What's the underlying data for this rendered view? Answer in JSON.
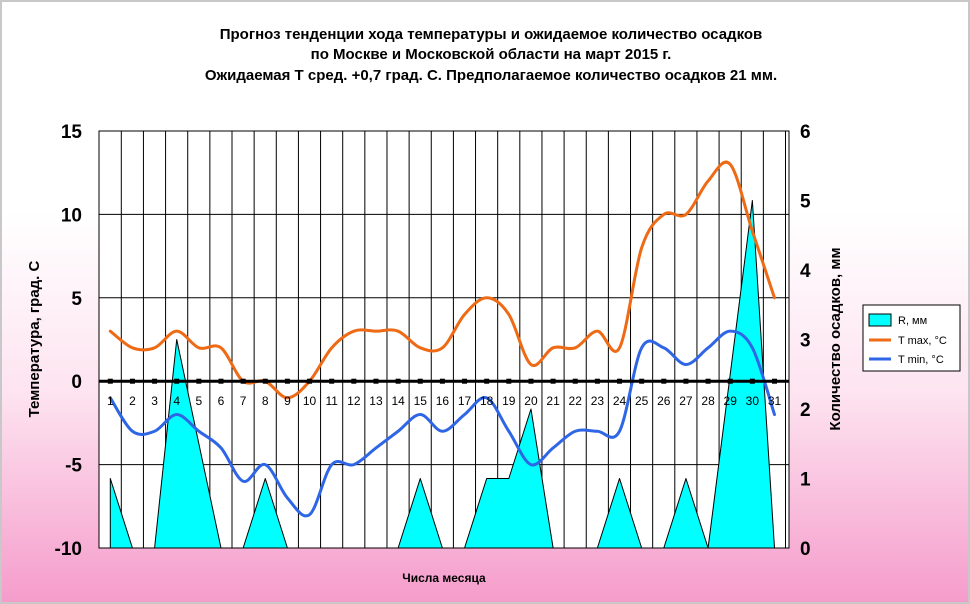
{
  "chart_data": {
    "type": "line",
    "title": [
      "Прогноз тенденции хода температуры и ожидаемое количество осадков",
      "по Москве и Московской области на март 2015 г.",
      "Ожидаемая Т сред. +0,7 град. С. Предполагаемое количество осадков 21 мм."
    ],
    "xlabel": "Числа месяца",
    "ylabel": "Температура, град. С",
    "y2label": "Количество осадков, мм",
    "ylim": [
      -10,
      15
    ],
    "y2lim": [
      0,
      6
    ],
    "yticks": [
      -10,
      -5,
      0,
      5,
      10,
      15
    ],
    "y2ticks": [
      0,
      1,
      2,
      3,
      4,
      5,
      6
    ],
    "categories": [
      "1",
      "2",
      "3",
      "4",
      "5",
      "6",
      "7",
      "8",
      "9",
      "10",
      "11",
      "12",
      "13",
      "14",
      "15",
      "16",
      "17",
      "18",
      "19",
      "20",
      "21",
      "22",
      "23",
      "24",
      "25",
      "26",
      "27",
      "28",
      "29",
      "30",
      "31"
    ],
    "series": [
      {
        "name": "R, мм",
        "type": "area",
        "axis": "right",
        "color": "#00ffff",
        "values": [
          1,
          0,
          0,
          3,
          1.5,
          0,
          0,
          1,
          0,
          0,
          0,
          0,
          0,
          0,
          1,
          0,
          0,
          1,
          1,
          2,
          0,
          0,
          0,
          1,
          0,
          0,
          1,
          0,
          2.5,
          5,
          0
        ]
      },
      {
        "name": "T max, °C",
        "type": "line",
        "axis": "left",
        "color": "#ee6a14",
        "values": [
          3,
          2,
          2,
          3,
          2,
          2,
          0,
          0,
          -1,
          0,
          2,
          3,
          3,
          3,
          2,
          2,
          4,
          5,
          4,
          1,
          2,
          2,
          3,
          2,
          8,
          10,
          10,
          12,
          13,
          9,
          5
        ]
      },
      {
        "name": "T min, °C",
        "type": "line",
        "axis": "left",
        "color": "#2f66e6",
        "values": [
          -1,
          -3,
          -3,
          -2,
          -3,
          -4,
          -6,
          -5,
          -7,
          -8,
          -5,
          -5,
          -4,
          -3,
          -2,
          -3,
          -2,
          -1,
          -3,
          -5,
          -4,
          -3,
          -3,
          -3,
          2,
          2,
          1,
          2,
          3,
          2,
          -2
        ]
      }
    ],
    "legend": "right",
    "grid": "vertical"
  }
}
